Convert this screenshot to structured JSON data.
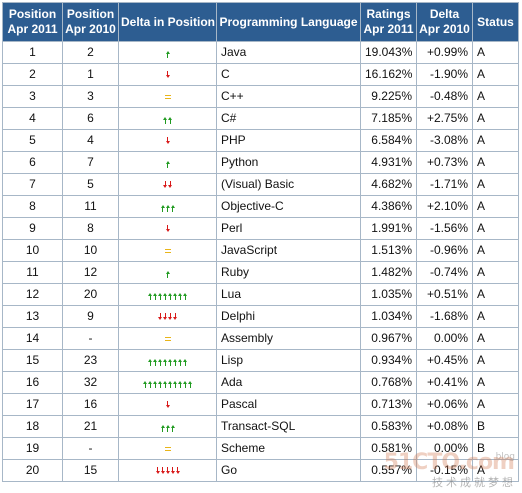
{
  "headers": {
    "pos2011": [
      "Position",
      "Apr 2011"
    ],
    "pos2010": [
      "Position",
      "Apr 2010"
    ],
    "delta_position": "Delta in Position",
    "language": "Programming Language",
    "ratings": [
      "Ratings",
      "Apr 2011"
    ],
    "delta": [
      "Delta",
      "Apr 2010"
    ],
    "status": "Status"
  },
  "rows": [
    {
      "pos2011": "1",
      "pos2010": "2",
      "trend": "up",
      "arrows": 1,
      "language": "Java",
      "rating": "19.043%",
      "delta": "+0.99%",
      "status": "A"
    },
    {
      "pos2011": "2",
      "pos2010": "1",
      "trend": "down",
      "arrows": 1,
      "language": "C",
      "rating": "16.162%",
      "delta": "-1.90%",
      "status": "A"
    },
    {
      "pos2011": "3",
      "pos2010": "3",
      "trend": "same",
      "arrows": 0,
      "language": "C++",
      "rating": "9.225%",
      "delta": "-0.48%",
      "status": "A"
    },
    {
      "pos2011": "4",
      "pos2010": "6",
      "trend": "up",
      "arrows": 2,
      "language": "C#",
      "rating": "7.185%",
      "delta": "+2.75%",
      "status": "A"
    },
    {
      "pos2011": "5",
      "pos2010": "4",
      "trend": "down",
      "arrows": 1,
      "language": "PHP",
      "rating": "6.584%",
      "delta": "-3.08%",
      "status": "A"
    },
    {
      "pos2011": "6",
      "pos2010": "7",
      "trend": "up",
      "arrows": 1,
      "language": "Python",
      "rating": "4.931%",
      "delta": "+0.73%",
      "status": "A"
    },
    {
      "pos2011": "7",
      "pos2010": "5",
      "trend": "down",
      "arrows": 2,
      "language": "(Visual) Basic",
      "rating": "4.682%",
      "delta": "-1.71%",
      "status": "A"
    },
    {
      "pos2011": "8",
      "pos2010": "11",
      "trend": "up",
      "arrows": 3,
      "language": "Objective-C",
      "rating": "4.386%",
      "delta": "+2.10%",
      "status": "A"
    },
    {
      "pos2011": "9",
      "pos2010": "8",
      "trend": "down",
      "arrows": 1,
      "language": "Perl",
      "rating": "1.991%",
      "delta": "-1.56%",
      "status": "A"
    },
    {
      "pos2011": "10",
      "pos2010": "10",
      "trend": "same",
      "arrows": 0,
      "language": "JavaScript",
      "rating": "1.513%",
      "delta": "-0.96%",
      "status": "A"
    },
    {
      "pos2011": "11",
      "pos2010": "12",
      "trend": "up",
      "arrows": 1,
      "language": "Ruby",
      "rating": "1.482%",
      "delta": "-0.74%",
      "status": "A"
    },
    {
      "pos2011": "12",
      "pos2010": "20",
      "trend": "up",
      "arrows": 8,
      "language": "Lua",
      "rating": "1.035%",
      "delta": "+0.51%",
      "status": "A"
    },
    {
      "pos2011": "13",
      "pos2010": "9",
      "trend": "down",
      "arrows": 4,
      "language": "Delphi",
      "rating": "1.034%",
      "delta": "-1.68%",
      "status": "A"
    },
    {
      "pos2011": "14",
      "pos2010": "-",
      "trend": "same",
      "arrows": 0,
      "language": "Assembly",
      "rating": "0.967%",
      "delta": "0.00%",
      "status": "A"
    },
    {
      "pos2011": "15",
      "pos2010": "23",
      "trend": "up",
      "arrows": 8,
      "language": "Lisp",
      "rating": "0.934%",
      "delta": "+0.45%",
      "status": "A"
    },
    {
      "pos2011": "16",
      "pos2010": "32",
      "trend": "up",
      "arrows": 10,
      "language": "Ada",
      "rating": "0.768%",
      "delta": "+0.41%",
      "status": "A"
    },
    {
      "pos2011": "17",
      "pos2010": "16",
      "trend": "down",
      "arrows": 1,
      "language": "Pascal",
      "rating": "0.713%",
      "delta": "+0.06%",
      "status": "A"
    },
    {
      "pos2011": "18",
      "pos2010": "21",
      "trend": "up",
      "arrows": 3,
      "language": "Transact-SQL",
      "rating": "0.583%",
      "delta": "+0.08%",
      "status": "B"
    },
    {
      "pos2011": "19",
      "pos2010": "-",
      "trend": "same",
      "arrows": 0,
      "language": "Scheme",
      "rating": "0.581%",
      "delta": "0.00%",
      "status": "B"
    },
    {
      "pos2011": "20",
      "pos2010": "15",
      "trend": "down",
      "arrows": 5,
      "language": "Go",
      "rating": "0.557%",
      "delta": "-0.15%",
      "status": "A"
    }
  ],
  "colors": {
    "header_bg": "#2d5d91",
    "up": "#1f9a1f",
    "down": "#d81818",
    "same": "#e9b51a",
    "link": "#1a3aa8"
  },
  "watermark": {
    "logo": "51CTO.com",
    "tagline": "技术成就梦想",
    "sub": "blog"
  }
}
